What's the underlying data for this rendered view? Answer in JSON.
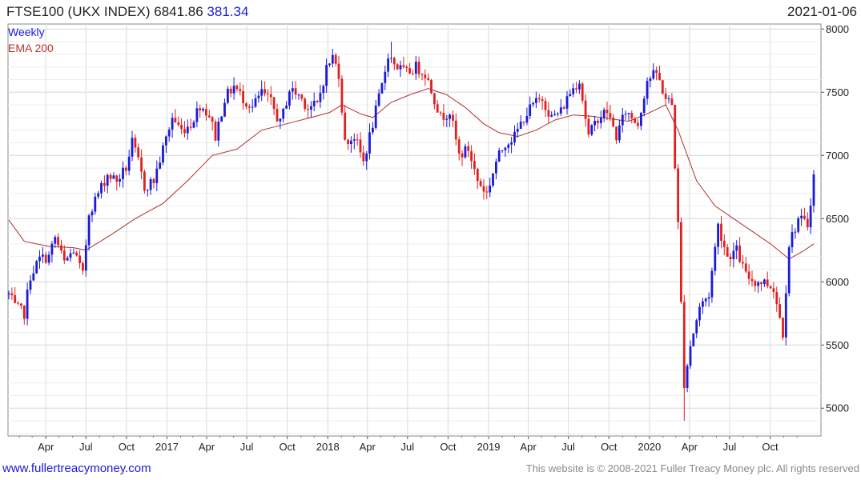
{
  "header": {
    "title": "FTSE100  (UKX INDEX)",
    "last": "6841.86",
    "change": "381.34",
    "date": "2021-01-06"
  },
  "footer": {
    "site": "www.fullertreacymoney.com",
    "copyright": "This website is © 2008-2021 Fuller Treacy Money plc. All rights reserved"
  },
  "colors": {
    "up": "#1a1adb",
    "down": "#e02020",
    "ema": "#b03030",
    "grid": "#dcdcdc"
  },
  "chart_data": {
    "type": "candlestick",
    "interval_legend": "Weekly",
    "series": [
      {
        "name": "Weekly",
        "color": "#1a1adb"
      },
      {
        "name": "EMA 200",
        "color": "#b03030"
      }
    ],
    "ylim": [
      4780,
      8040
    ],
    "y_ticks": [
      5000,
      5500,
      6000,
      6500,
      7000,
      7500,
      8000
    ],
    "x_range": [
      "2016-01-08",
      "2021-01-08"
    ],
    "x_ticks": [
      {
        "date": "2016-04-01",
        "label": "Apr"
      },
      {
        "date": "2016-07-01",
        "label": "Jul"
      },
      {
        "date": "2016-10-01",
        "label": "Oct"
      },
      {
        "date": "2017-01-01",
        "label": "2017"
      },
      {
        "date": "2017-04-01",
        "label": "Apr"
      },
      {
        "date": "2017-07-01",
        "label": "Jul"
      },
      {
        "date": "2017-10-01",
        "label": "Oct"
      },
      {
        "date": "2018-01-01",
        "label": "2018"
      },
      {
        "date": "2018-04-01",
        "label": "Apr"
      },
      {
        "date": "2018-07-01",
        "label": "Jul"
      },
      {
        "date": "2018-10-01",
        "label": "Oct"
      },
      {
        "date": "2019-01-01",
        "label": "2019"
      },
      {
        "date": "2019-04-01",
        "label": "Apr"
      },
      {
        "date": "2019-07-01",
        "label": "Jul"
      },
      {
        "date": "2019-10-01",
        "label": "Oct"
      },
      {
        "date": "2020-01-01",
        "label": "2020"
      },
      {
        "date": "2020-04-01",
        "label": "Apr"
      },
      {
        "date": "2020-07-01",
        "label": "Jul"
      },
      {
        "date": "2020-10-01",
        "label": "Oct"
      }
    ],
    "close_path": [
      [
        "2016-01-08",
        5900
      ],
      [
        "2016-01-22",
        5800
      ],
      [
        "2016-02-12",
        5750
      ],
      [
        "2016-02-26",
        6050
      ],
      [
        "2016-03-18",
        6180
      ],
      [
        "2016-04-08",
        6200
      ],
      [
        "2016-04-22",
        6350
      ],
      [
        "2016-05-13",
        6150
      ],
      [
        "2016-06-03",
        6250
      ],
      [
        "2016-06-24",
        6050
      ],
      [
        "2016-07-08",
        6550
      ],
      [
        "2016-07-29",
        6700
      ],
      [
        "2016-08-19",
        6850
      ],
      [
        "2016-09-09",
        6800
      ],
      [
        "2016-09-30",
        6900
      ],
      [
        "2016-10-14",
        7100
      ],
      [
        "2016-10-28",
        6950
      ],
      [
        "2016-11-11",
        6750
      ],
      [
        "2016-12-02",
        6800
      ],
      [
        "2016-12-23",
        7050
      ],
      [
        "2017-01-13",
        7300
      ],
      [
        "2017-02-03",
        7200
      ],
      [
        "2017-02-24",
        7250
      ],
      [
        "2017-03-17",
        7400
      ],
      [
        "2017-04-07",
        7320
      ],
      [
        "2017-04-21",
        7150
      ],
      [
        "2017-05-12",
        7450
      ],
      [
        "2017-06-02",
        7550
      ],
      [
        "2017-06-23",
        7450
      ],
      [
        "2017-07-14",
        7380
      ],
      [
        "2017-08-04",
        7500
      ],
      [
        "2017-08-25",
        7420
      ],
      [
        "2017-09-15",
        7250
      ],
      [
        "2017-10-06",
        7520
      ],
      [
        "2017-10-27",
        7480
      ],
      [
        "2017-11-17",
        7380
      ],
      [
        "2017-12-08",
        7400
      ],
      [
        "2017-12-29",
        7690
      ],
      [
        "2018-01-12",
        7780
      ],
      [
        "2018-01-26",
        7650
      ],
      [
        "2018-02-09",
        7100
      ],
      [
        "2018-03-02",
        7150
      ],
      [
        "2018-03-23",
        6950
      ],
      [
        "2018-04-13",
        7250
      ],
      [
        "2018-05-04",
        7550
      ],
      [
        "2018-05-18",
        7800
      ],
      [
        "2018-06-08",
        7700
      ],
      [
        "2018-06-29",
        7650
      ],
      [
        "2018-07-20",
        7700
      ],
      [
        "2018-08-10",
        7650
      ],
      [
        "2018-08-31",
        7450
      ],
      [
        "2018-09-14",
        7300
      ],
      [
        "2018-10-05",
        7350
      ],
      [
        "2018-10-26",
        7000
      ],
      [
        "2018-11-16",
        7050
      ],
      [
        "2018-12-07",
        6800
      ],
      [
        "2018-12-28",
        6700
      ],
      [
        "2019-01-18",
        6950
      ],
      [
        "2019-02-08",
        7100
      ],
      [
        "2019-03-01",
        7150
      ],
      [
        "2019-03-22",
        7300
      ],
      [
        "2019-04-12",
        7400
      ],
      [
        "2019-05-03",
        7450
      ],
      [
        "2019-05-24",
        7300
      ],
      [
        "2019-06-14",
        7350
      ],
      [
        "2019-07-05",
        7500
      ],
      [
        "2019-07-26",
        7600
      ],
      [
        "2019-08-16",
        7150
      ],
      [
        "2019-09-06",
        7300
      ],
      [
        "2019-09-27",
        7350
      ],
      [
        "2019-10-18",
        7150
      ],
      [
        "2019-11-08",
        7350
      ],
      [
        "2019-12-06",
        7250
      ],
      [
        "2019-12-27",
        7600
      ],
      [
        "2020-01-17",
        7650
      ],
      [
        "2020-02-07",
        7450
      ],
      [
        "2020-02-21",
        7400
      ],
      [
        "2020-03-06",
        6450
      ],
      [
        "2020-03-20",
        5200
      ],
      [
        "2020-04-03",
        5500
      ],
      [
        "2020-04-24",
        5800
      ],
      [
        "2020-05-15",
        5900
      ],
      [
        "2020-06-05",
        6450
      ],
      [
        "2020-06-26",
        6200
      ],
      [
        "2020-07-17",
        6250
      ],
      [
        "2020-08-07",
        6050
      ],
      [
        "2020-08-28",
        6000
      ],
      [
        "2020-09-18",
        6000
      ],
      [
        "2020-10-09",
        5950
      ],
      [
        "2020-10-30",
        5600
      ],
      [
        "2020-11-13",
        6300
      ],
      [
        "2020-12-04",
        6500
      ],
      [
        "2020-12-25",
        6450
      ],
      [
        "2021-01-08",
        6840
      ]
    ],
    "ema_path": [
      [
        "2016-01-08",
        6490
      ],
      [
        "2016-02-12",
        6320
      ],
      [
        "2016-04-08",
        6280
      ],
      [
        "2016-06-03",
        6270
      ],
      [
        "2016-07-01",
        6250
      ],
      [
        "2016-08-26",
        6370
      ],
      [
        "2016-10-21",
        6500
      ],
      [
        "2016-12-23",
        6620
      ],
      [
        "2017-02-17",
        6800
      ],
      [
        "2017-04-14",
        7000
      ],
      [
        "2017-06-09",
        7050
      ],
      [
        "2017-08-04",
        7200
      ],
      [
        "2017-09-29",
        7250
      ],
      [
        "2017-11-24",
        7300
      ],
      [
        "2018-01-05",
        7340
      ],
      [
        "2018-02-02",
        7400
      ],
      [
        "2018-03-16",
        7330
      ],
      [
        "2018-04-13",
        7300
      ],
      [
        "2018-05-25",
        7420
      ],
      [
        "2018-07-06",
        7480
      ],
      [
        "2018-08-17",
        7530
      ],
      [
        "2018-09-28",
        7480
      ],
      [
        "2018-11-09",
        7380
      ],
      [
        "2018-12-21",
        7250
      ],
      [
        "2019-01-25",
        7180
      ],
      [
        "2019-03-08",
        7150
      ],
      [
        "2019-04-19",
        7200
      ],
      [
        "2019-05-31",
        7280
      ],
      [
        "2019-07-12",
        7320
      ],
      [
        "2019-08-23",
        7310
      ],
      [
        "2019-10-04",
        7290
      ],
      [
        "2019-11-15",
        7270
      ],
      [
        "2019-12-27",
        7330
      ],
      [
        "2020-02-07",
        7400
      ],
      [
        "2020-03-06",
        7200
      ],
      [
        "2020-04-17",
        6800
      ],
      [
        "2020-05-29",
        6600
      ],
      [
        "2020-07-10",
        6500
      ],
      [
        "2020-08-21",
        6400
      ],
      [
        "2020-10-02",
        6300
      ],
      [
        "2020-11-13",
        6180
      ],
      [
        "2020-12-18",
        6250
      ],
      [
        "2021-01-08",
        6300
      ]
    ]
  }
}
